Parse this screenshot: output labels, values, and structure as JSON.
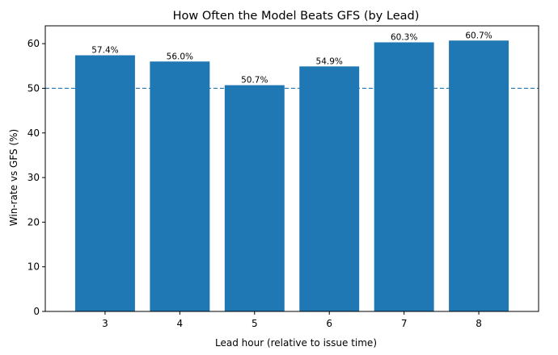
{
  "chart_data": {
    "type": "bar",
    "title": "How Often the Model Beats GFS (by Lead)",
    "xlabel": "Lead hour (relative to issue time)",
    "ylabel": "Win-rate vs GFS (%)",
    "categories": [
      "3",
      "4",
      "5",
      "6",
      "7",
      "8"
    ],
    "values": [
      57.4,
      56.0,
      50.7,
      54.9,
      60.3,
      60.7
    ],
    "data_labels": [
      "57.4%",
      "56.0%",
      "50.7%",
      "54.9%",
      "60.3%",
      "60.7%"
    ],
    "ylim": [
      0,
      64
    ],
    "yticks": [
      0,
      10,
      20,
      30,
      40,
      50,
      60
    ],
    "reference_line": {
      "y": 50,
      "style": "dashed",
      "color": "#1f77b4"
    },
    "bar_color": "#1f77b4",
    "grid": false,
    "legend": "none"
  }
}
